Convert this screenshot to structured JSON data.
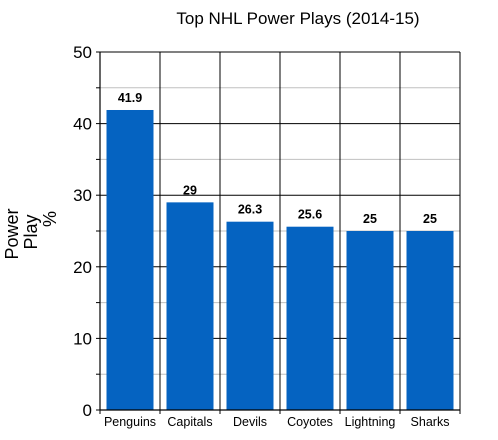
{
  "chart_data": {
    "type": "bar",
    "title": "Top NHL Power Plays (2014-15)",
    "xlabel": "",
    "ylabel": [
      "Power",
      "Play",
      "%"
    ],
    "categories": [
      "Penguins",
      "Capitals",
      "Devils",
      "Coyotes",
      "Lightning",
      "Sharks"
    ],
    "values": [
      41.9,
      29,
      26.3,
      25.6,
      25,
      25
    ],
    "data_labels": [
      "41.9",
      "29",
      "26.3",
      "25.6",
      "25",
      "25"
    ],
    "ylim": [
      0,
      50
    ],
    "yticks": [
      0,
      10,
      20,
      30,
      40,
      50
    ],
    "grid": true,
    "bar_color": "#0563c1"
  }
}
